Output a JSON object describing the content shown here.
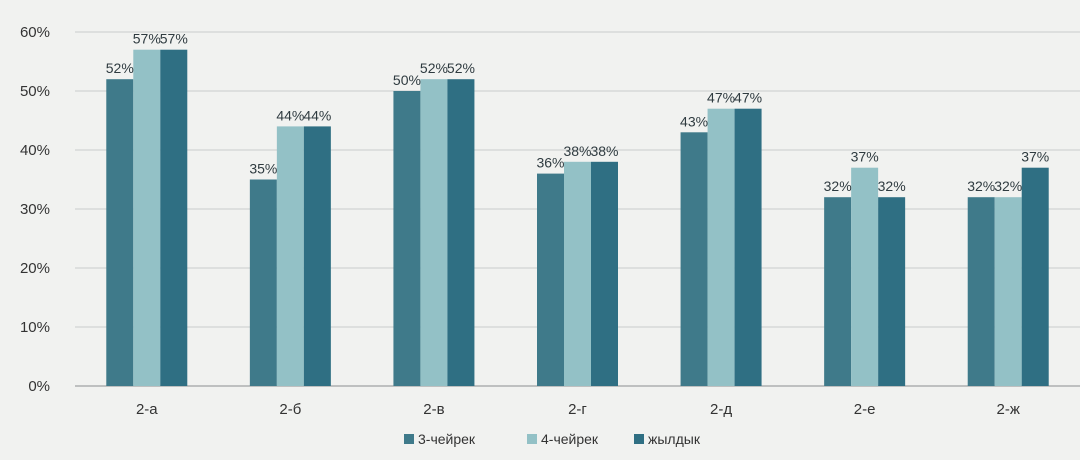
{
  "chart_data": {
    "type": "bar",
    "title": "",
    "xlabel": "",
    "ylabel": "",
    "ylim": [
      0,
      60
    ],
    "yticks": [
      "0%",
      "10%",
      "20%",
      "30%",
      "40%",
      "50%",
      "60%"
    ],
    "grid": true,
    "legend_position": "bottom",
    "categories": [
      "2-а",
      "2-б",
      "2-в",
      "2-г",
      "2-д",
      "2-е",
      "2-ж"
    ],
    "series": [
      {
        "name": "3-чейрек",
        "color": "#3f7a8a",
        "values": [
          52,
          35,
          50,
          36,
          43,
          32,
          32
        ],
        "labels": [
          "52%",
          "35%",
          "50%",
          "36%",
          "43%",
          "32%",
          "32%"
        ]
      },
      {
        "name": "4-чейрек",
        "color": "#93c1c6",
        "values": [
          57,
          44,
          52,
          38,
          47,
          37,
          32
        ],
        "labels": [
          "57%",
          "44%",
          "52%",
          "38%",
          "47%",
          "37%",
          "32%"
        ]
      },
      {
        "name": "жылдык",
        "color": "#2f6f83",
        "values": [
          57,
          44,
          52,
          38,
          47,
          32,
          37
        ],
        "labels": [
          "57%",
          "44%",
          "52%",
          "38%",
          "47%",
          "32%",
          "37%"
        ]
      }
    ]
  }
}
